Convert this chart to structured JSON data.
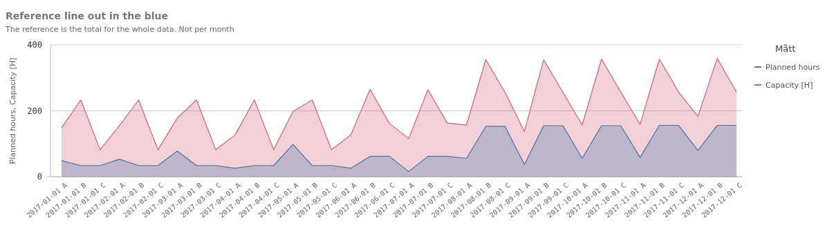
{
  "chart_data": {
    "type": "area",
    "title": "Reference line out in the blue",
    "subtitle": "The reference is the total for the whole data. Not per month",
    "ylabel": "Planned hours,  Capacity [H]",
    "legend_title": "Mått",
    "legend": "top right",
    "grid": "y",
    "ylim": [
      0,
      400
    ],
    "yticks": [
      0,
      200,
      400
    ],
    "categories": [
      "2017-01-01 A",
      "2017-01-01 B",
      "2017-01-01 C",
      "2017-02-01 A",
      "2017-02-01 B",
      "2017-02-01 C",
      "2017-03-01 A",
      "2017-03-01 B",
      "2017-03-01 C",
      "2017-04-01 A",
      "2017-04-01 B",
      "2017-04-01 C",
      "2017-05-01 A",
      "2017-05-01 B",
      "2017-05-01 C",
      "2017-06-01 A",
      "2017-06-01 B",
      "2017-06-01 C",
      "2017-07-01 A",
      "2017-07-01 B",
      "2017-07-01 C",
      "2017-08-01 A",
      "2017-08-01 B",
      "2017-08-01 C",
      "2017-09-01 A",
      "2017-09-01 B",
      "2017-09-01 C",
      "2017-10-01 A",
      "2017-10-01 B",
      "2017-10-01 C",
      "2017-11-01 A",
      "2017-11-01 B",
      "2017-11-01 C",
      "2017-12-01 A",
      "2017-12-01 B",
      "2017-12-01 C"
    ],
    "series": [
      {
        "name": "Planned hours",
        "color": "#4a76a8",
        "values": [
          49,
          34,
          34,
          53,
          34,
          34,
          78,
          34,
          34,
          26,
          34,
          34,
          98,
          34,
          34,
          26,
          62,
          62,
          16,
          62,
          62,
          56,
          153,
          153,
          37,
          155,
          155,
          56,
          155,
          155,
          59,
          156,
          156,
          80,
          156,
          156
        ]
      },
      {
        "name": "Capacity [H]",
        "color": "#d0627a",
        "values": [
          148,
          233,
          82,
          155,
          233,
          82,
          178,
          233,
          82,
          127,
          233,
          82,
          198,
          233,
          82,
          127,
          265,
          162,
          116,
          264,
          163,
          157,
          355,
          256,
          137,
          355,
          256,
          157,
          357,
          257,
          159,
          357,
          257,
          183,
          359,
          257
        ]
      }
    ]
  }
}
